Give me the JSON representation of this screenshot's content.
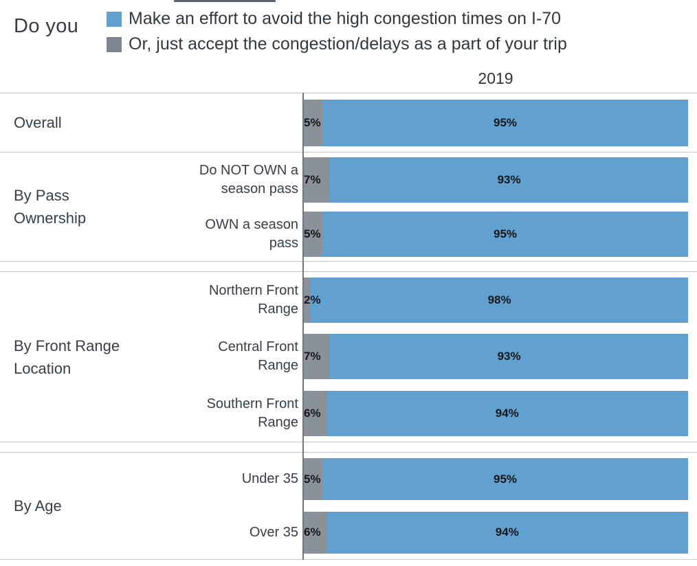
{
  "header": {
    "question_label": "Do you",
    "legend": [
      {
        "label": "Make an effort to avoid the high congestion times on I-70",
        "color": "#61a0cf"
      },
      {
        "label": "Or, just accept the congestion/delays as a part of your trip",
        "color": "#7f858f"
      }
    ]
  },
  "chart_data": {
    "type": "bar",
    "variant": "horizontal-stacked-100-percent",
    "column_header": "2019",
    "unit": "percent",
    "legend_position": "top",
    "axis_range": [
      0,
      100
    ],
    "grid": false,
    "series": [
      {
        "name": "Or, just accept the congestion/delays as a part of your trip",
        "color": "#8b9199"
      },
      {
        "name": "Make an effort to avoid the high congestion times on I-70",
        "color": "#61a0cf"
      }
    ],
    "sections": [
      {
        "label": "Overall",
        "rows": [
          {
            "label": "",
            "accept_value": 5,
            "accept_label": "5%",
            "avoid_value": 95,
            "avoid_label": "95%"
          }
        ]
      },
      {
        "label": "By Pass Ownership",
        "rows": [
          {
            "label": "Do NOT OWN a season pass",
            "accept_value": 7,
            "accept_label": "7%",
            "avoid_value": 93,
            "avoid_label": "93%"
          },
          {
            "label": "OWN a season pass",
            "accept_value": 5,
            "accept_label": "5%",
            "avoid_value": 95,
            "avoid_label": "95%"
          }
        ]
      },
      {
        "label": "By Front Range Location",
        "rows": [
          {
            "label": "Northern Front Range",
            "accept_value": 2,
            "accept_label": "2%",
            "avoid_value": 98,
            "avoid_label": "98%"
          },
          {
            "label": "Central Front Range",
            "accept_value": 7,
            "accept_label": "7%",
            "avoid_value": 93,
            "avoid_label": "93%"
          },
          {
            "label": "Southern Front Range",
            "accept_value": 6,
            "accept_label": "6%",
            "avoid_value": 94,
            "avoid_label": "94%"
          }
        ]
      },
      {
        "label": "By Age",
        "rows": [
          {
            "label": "Under 35",
            "accept_value": 5,
            "accept_label": "5%",
            "avoid_value": 95,
            "avoid_label": "95%"
          },
          {
            "label": "Over 35",
            "accept_value": 6,
            "accept_label": "6%",
            "avoid_value": 94,
            "avoid_label": "94%"
          }
        ]
      }
    ]
  }
}
